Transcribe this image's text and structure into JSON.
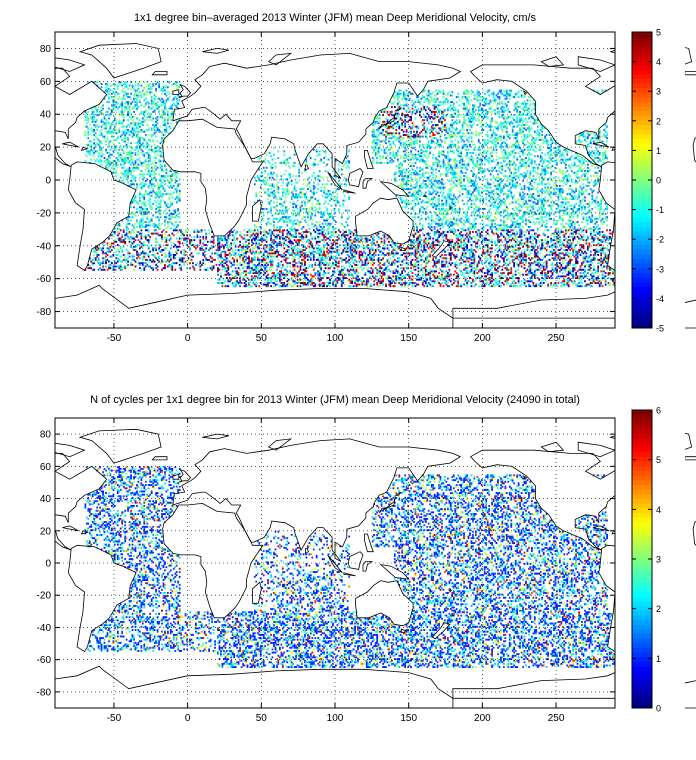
{
  "chart_data": [
    {
      "type": "heatmap",
      "title": "1x1 degree bin–averaged 2013 Winter (JFM) mean Deep Meridional Velocity, cm/s",
      "xlabel": "",
      "ylabel": "",
      "xlim": [
        -90,
        290
      ],
      "ylim": [
        -90,
        90
      ],
      "xticks": [
        -50,
        0,
        50,
        100,
        150,
        200,
        250
      ],
      "yticks": [
        -80,
        -60,
        -40,
        -20,
        0,
        20,
        40,
        60,
        80
      ],
      "grid": true,
      "colorbar": {
        "min": -5,
        "max": 5,
        "ticks": [
          -5,
          -4,
          -3,
          -2,
          -1,
          0,
          1,
          2,
          3,
          4,
          5
        ],
        "colormap": "jet",
        "placement": "right"
      },
      "data_description_regions": [
        {
          "lon": [
            -70,
            -5
          ],
          "lat": [
            -50,
            60
          ],
          "value_range": [
            -5,
            5
          ]
        },
        {
          "lon": [
            -5,
            120
          ],
          "lat": [
            -65,
            -30
          ],
          "value_range": [
            -5,
            5
          ]
        },
        {
          "lon": [
            140,
            285
          ],
          "lat": [
            -60,
            50
          ],
          "value_range": [
            -2,
            2
          ]
        }
      ]
    },
    {
      "type": "heatmap",
      "title": "N of cycles per 1x1 degree bin for 2013 Winter (JFM) mean Deep Meridional Velocity (24090 in total)",
      "xlabel": "",
      "ylabel": "",
      "xlim": [
        -90,
        290
      ],
      "ylim": [
        -90,
        90
      ],
      "xticks": [
        -50,
        0,
        50,
        100,
        150,
        200,
        250
      ],
      "yticks": [
        -80,
        -60,
        -40,
        -20,
        0,
        20,
        40,
        60,
        80
      ],
      "grid": true,
      "colorbar": {
        "min": 0,
        "max": 6,
        "ticks": [
          0,
          1,
          2,
          3,
          4,
          5,
          6
        ],
        "colormap": "jet",
        "placement": "right"
      },
      "total_cycles": 24090
    }
  ]
}
